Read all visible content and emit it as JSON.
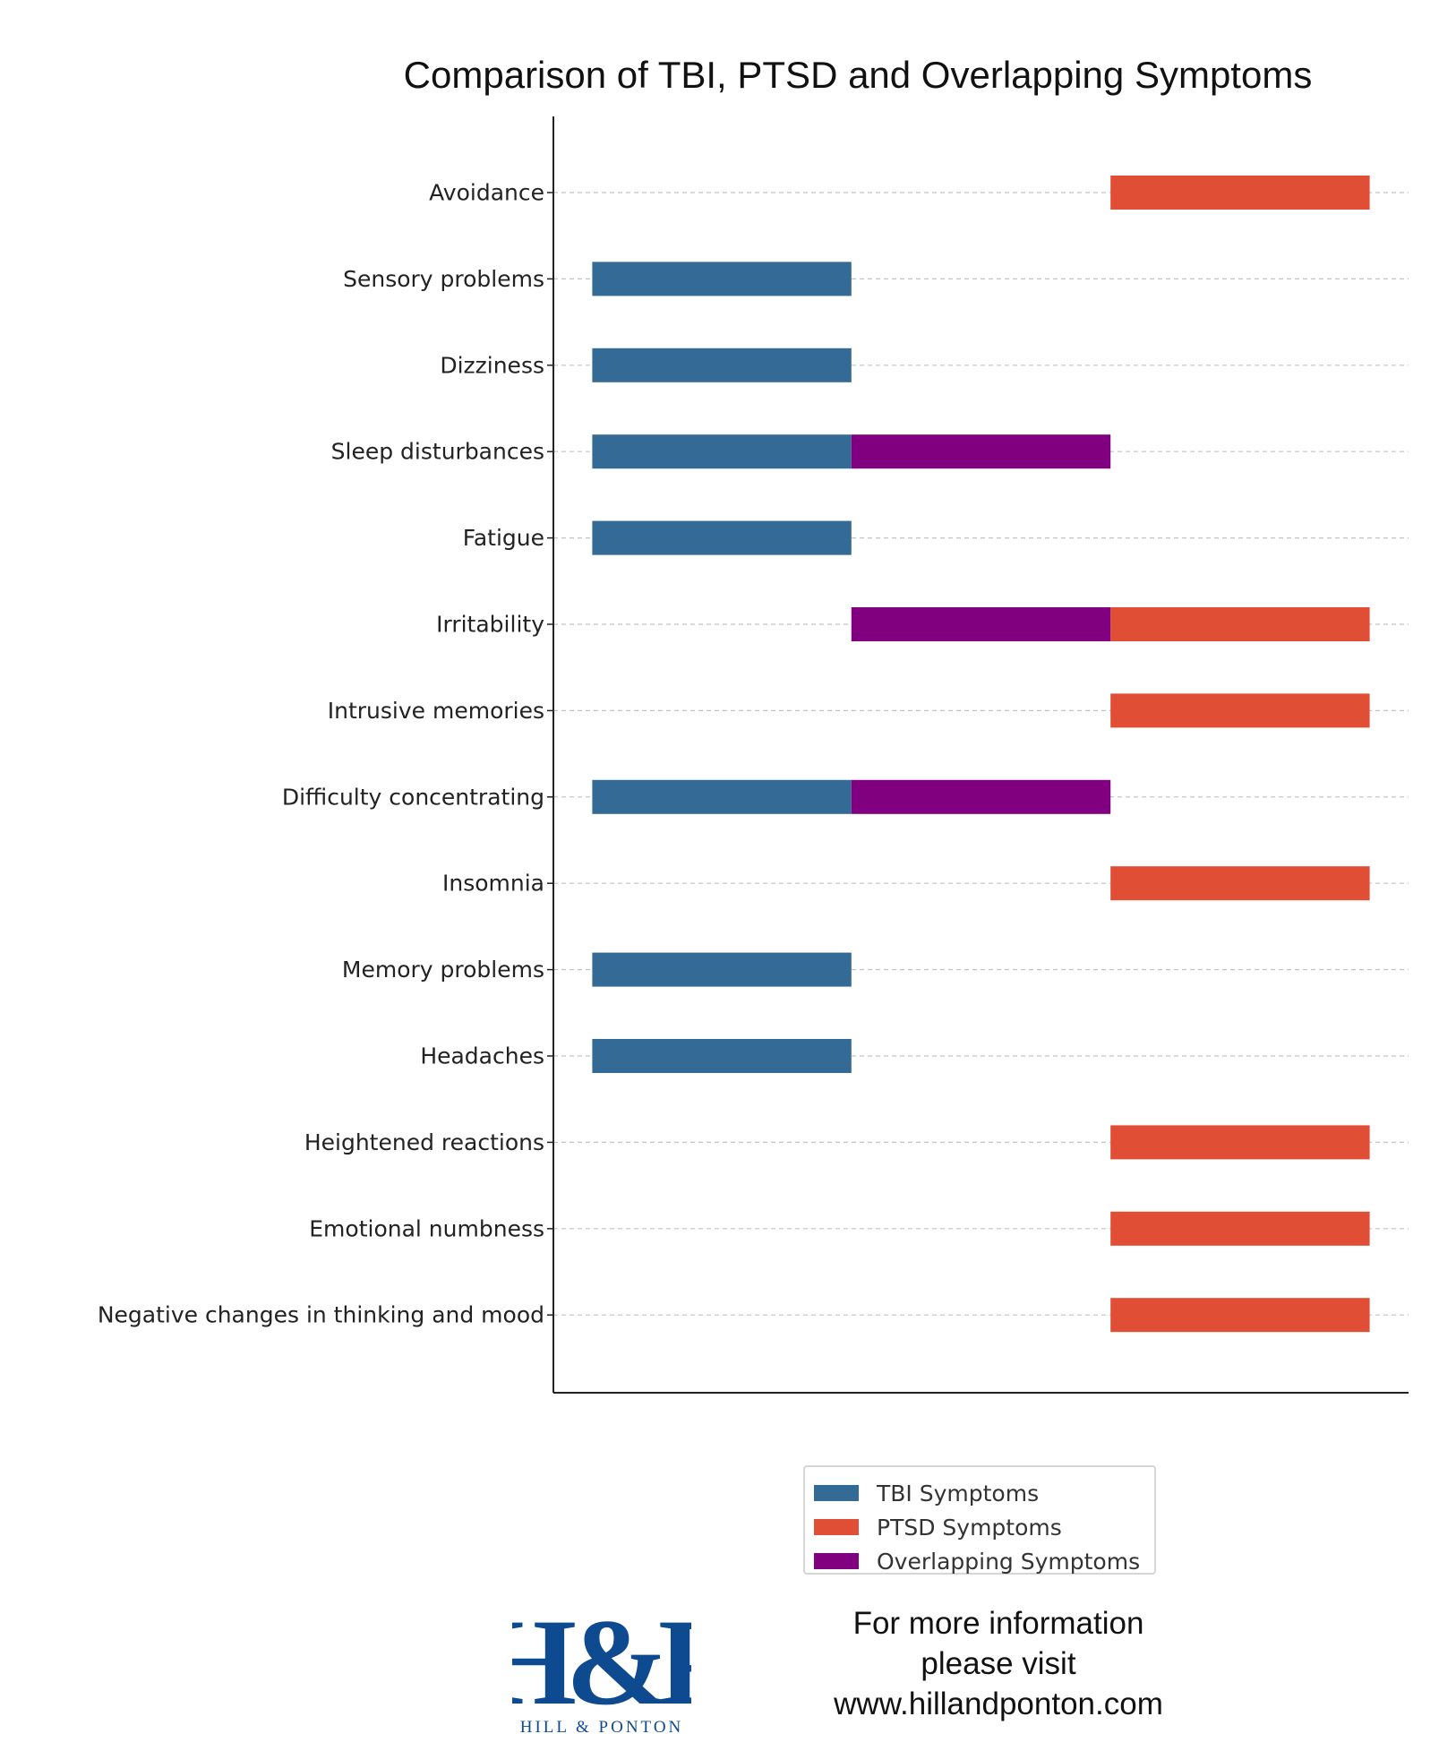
{
  "chart_data": {
    "type": "bar",
    "orientation": "horizontal",
    "title": "Comparison of TBI, PTSD and Overlapping Symptoms",
    "xlabel": "",
    "ylabel": "",
    "xlim": [
      -0.15,
      3.15
    ],
    "grid": "horizontal dashed",
    "legend_position": "bottom-right",
    "categories": [
      "Avoidance",
      "Sensory problems",
      "Dizziness",
      "Sleep disturbances",
      "Fatigue",
      "Irritability",
      "Intrusive memories",
      "Difficulty concentrating",
      "Insomnia",
      "Memory problems",
      "Headaches",
      "Heightened reactions",
      "Emotional numbness",
      "Negative changes in thinking and mood"
    ],
    "series": [
      {
        "name": "TBI Symptoms",
        "color": "#336a96",
        "start": 0,
        "end": 1,
        "values": [
          0,
          1,
          1,
          1,
          1,
          0,
          0,
          1,
          0,
          1,
          1,
          0,
          0,
          0
        ]
      },
      {
        "name": "PTSD Symptoms",
        "color": "#e04e35",
        "start": 2,
        "end": 3,
        "values": [
          1,
          0,
          0,
          0,
          0,
          1,
          1,
          0,
          1,
          0,
          0,
          1,
          1,
          1
        ]
      },
      {
        "name": "Overlapping Symptoms",
        "color": "#800080",
        "start": 1,
        "end": 2,
        "values": [
          0,
          0,
          0,
          1,
          0,
          1,
          0,
          1,
          0,
          0,
          0,
          0,
          0,
          0
        ]
      }
    ]
  },
  "legend": {
    "items": [
      {
        "label": "TBI Symptoms",
        "color": "#336a96"
      },
      {
        "label": "PTSD Symptoms",
        "color": "#e04e35"
      },
      {
        "label": "Overlapping Symptoms",
        "color": "#800080"
      }
    ]
  },
  "footer": {
    "logo_text": "H&P",
    "logo_subtext": "HILL & PONTON",
    "logo_color": "#0d4a8f",
    "info_line1": "For more information",
    "info_line2": "please visit",
    "info_line3": "www.hillandponton.com"
  }
}
